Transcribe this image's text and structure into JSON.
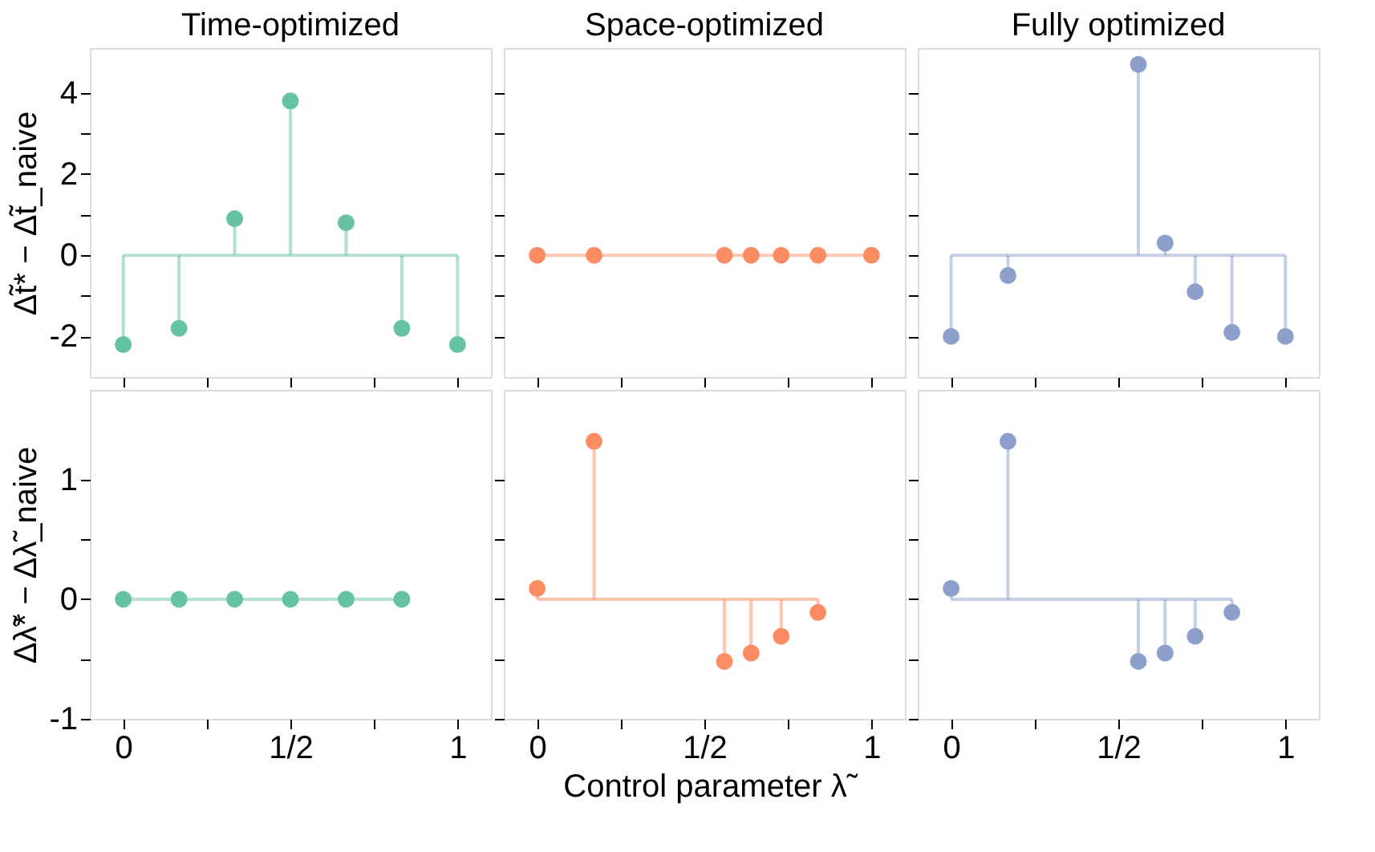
{
  "chart_data": [
    {
      "type": "lollipop",
      "title": "Time-optimized",
      "ylabel": "Δt̃* − Δt̃_naive",
      "marker": "circle",
      "tick_labels": "y",
      "x": [
        0,
        0.1667,
        0.3333,
        0.5,
        0.6667,
        0.8333,
        1
      ],
      "series": [
        {
          "color": "#66c2a5",
          "values": [
            -2.2,
            -1.8,
            0.9,
            3.8,
            0.8,
            -1.8,
            -2.2
          ]
        }
      ],
      "ref_lines": [
        {
          "axis": "y",
          "value": 0,
          "color": "#b3e0d2"
        }
      ],
      "xlim": [
        -0.1,
        1.1
      ],
      "xticks": [
        {
          "value": 0,
          "label": null
        },
        {
          "value": 0.25,
          "label": null
        },
        {
          "value": 0.5,
          "label": null
        },
        {
          "value": 0.75,
          "label": null
        },
        {
          "value": 1,
          "label": null
        }
      ],
      "ylim": [
        -3,
        5.1
      ],
      "yticks": [
        -2,
        {
          "value": -1,
          "label": null
        },
        0,
        {
          "value": 1,
          "label": null
        },
        2,
        {
          "value": 3,
          "label": null
        },
        4
      ]
    },
    {
      "type": "lollipop",
      "title": "Space-optimized",
      "marker": "circle",
      "tick_labels": false,
      "x": [
        0,
        0.17,
        0.56,
        0.64,
        0.73,
        0.84,
        1
      ],
      "series": [
        {
          "color": "#fc8d62",
          "values": [
            0,
            0,
            0,
            0,
            0,
            0,
            0
          ]
        }
      ],
      "ref_lines": [
        {
          "axis": "y",
          "value": 0,
          "color": "#fdc6b0"
        }
      ],
      "xlim": [
        -0.1,
        1.1
      ],
      "xticks": [
        {
          "value": 0,
          "label": null
        },
        {
          "value": 0.25,
          "label": null
        },
        {
          "value": 0.5,
          "label": null
        },
        {
          "value": 0.75,
          "label": null
        },
        {
          "value": 1,
          "label": null
        }
      ],
      "ylim": [
        -3,
        5.1
      ],
      "yticks": [
        -2,
        {
          "value": -1,
          "label": null
        },
        0,
        {
          "value": 1,
          "label": null
        },
        2,
        {
          "value": 3,
          "label": null
        },
        4
      ]
    },
    {
      "type": "lollipop",
      "title": "Fully optimized",
      "marker": "circle",
      "tick_labels": false,
      "x": [
        0,
        0.17,
        0.56,
        0.64,
        0.73,
        0.84,
        1
      ],
      "series": [
        {
          "color": "#8da0cb",
          "values": [
            -2.0,
            -0.5,
            4.7,
            0.3,
            -0.9,
            -1.9,
            -2.0
          ]
        }
      ],
      "ref_lines": [
        {
          "axis": "y",
          "value": 0,
          "color": "#c6cfe5"
        }
      ],
      "xlim": [
        -0.1,
        1.1
      ],
      "xticks": [
        {
          "value": 0,
          "label": null
        },
        {
          "value": 0.25,
          "label": null
        },
        {
          "value": 0.5,
          "label": null
        },
        {
          "value": 0.75,
          "label": null
        },
        {
          "value": 1,
          "label": null
        }
      ],
      "ylim": [
        -3,
        5.1
      ],
      "yticks": [
        -2,
        {
          "value": -1,
          "label": null
        },
        0,
        {
          "value": 1,
          "label": null
        },
        2,
        {
          "value": 3,
          "label": null
        },
        4
      ]
    },
    {
      "type": "lollipop",
      "ylabel": "Δλ̃* − Δλ̃_naive",
      "marker": "circle",
      "x": [
        0,
        0.1667,
        0.3333,
        0.5,
        0.6667,
        0.8333
      ],
      "series": [
        {
          "color": "#66c2a5",
          "values": [
            0,
            0,
            0,
            0,
            0,
            0
          ]
        }
      ],
      "ref_lines": [
        {
          "axis": "y",
          "value": 0,
          "color": "#b3e0d2"
        }
      ],
      "xlim": [
        -0.1,
        1.1
      ],
      "xticks": [
        {
          "value": 0,
          "label": "0"
        },
        {
          "value": 0.25,
          "label": null
        },
        {
          "value": 0.5,
          "label": "1/2"
        },
        {
          "value": 0.75,
          "label": null
        },
        {
          "value": 1,
          "label": "1"
        }
      ],
      "ylim": [
        -1,
        1.75
      ],
      "yticks": [
        -1,
        {
          "value": -0.5,
          "label": null
        },
        0,
        {
          "value": 0.5,
          "label": null
        },
        1
      ]
    },
    {
      "type": "lollipop",
      "xlabel": "Control parameter λ̃",
      "marker": "circle",
      "tick_labels": "x",
      "x": [
        0,
        0.17,
        0.56,
        0.64,
        0.73,
        0.84
      ],
      "series": [
        {
          "color": "#fc8d62",
          "values": [
            0.09,
            1.32,
            -0.52,
            -0.45,
            -0.31,
            -0.11
          ]
        }
      ],
      "ref_lines": [
        {
          "axis": "y",
          "value": 0,
          "color": "#fdc6b0"
        }
      ],
      "xlim": [
        -0.1,
        1.1
      ],
      "xticks": [
        {
          "value": 0,
          "label": "0"
        },
        {
          "value": 0.25,
          "label": null
        },
        {
          "value": 0.5,
          "label": "1/2"
        },
        {
          "value": 0.75,
          "label": null
        },
        {
          "value": 1,
          "label": "1"
        }
      ],
      "ylim": [
        -1,
        1.75
      ],
      "yticks": [
        -1,
        -0.5,
        0,
        0.5,
        1
      ]
    },
    {
      "type": "lollipop",
      "marker": "circle",
      "tick_labels": "x",
      "x": [
        0,
        0.17,
        0.56,
        0.64,
        0.73,
        0.84
      ],
      "series": [
        {
          "color": "#8da0cb",
          "values": [
            0.09,
            1.32,
            -0.52,
            -0.45,
            -0.31,
            -0.11
          ]
        }
      ],
      "ref_lines": [
        {
          "axis": "y",
          "value": 0,
          "color": "#c6cfe5"
        }
      ],
      "xlim": [
        -0.1,
        1.1
      ],
      "xticks": [
        {
          "value": 0,
          "label": "0"
        },
        {
          "value": 0.25,
          "label": null
        },
        {
          "value": 0.5,
          "label": "1/2"
        },
        {
          "value": 0.75,
          "label": null
        },
        {
          "value": 1,
          "label": "1"
        }
      ],
      "ylim": [
        -1,
        1.75
      ],
      "yticks": [
        -1,
        -0.5,
        0,
        0.5,
        1
      ]
    }
  ]
}
